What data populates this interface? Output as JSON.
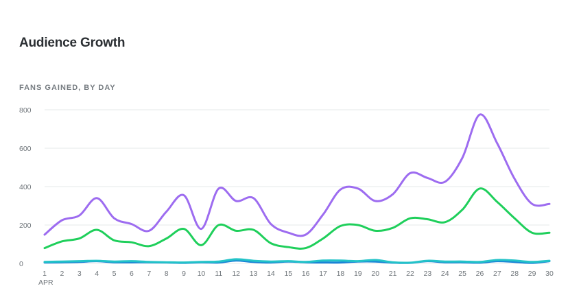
{
  "header": {
    "title": "Audience Growth",
    "subtitle": "FANS GAINED, BY DAY"
  },
  "chart_data": {
    "type": "line",
    "title": "Audience Growth",
    "subtitle": "FANS GAINED, BY DAY",
    "xlabel": "",
    "ylabel": "",
    "x": [
      1,
      2,
      3,
      4,
      5,
      6,
      7,
      8,
      9,
      10,
      11,
      12,
      13,
      14,
      15,
      16,
      17,
      18,
      19,
      20,
      21,
      22,
      23,
      24,
      25,
      26,
      27,
      28,
      29,
      30
    ],
    "x_month_label": "APR",
    "ylim": [
      0,
      800
    ],
    "yticks": [
      0,
      200,
      400,
      600,
      800
    ],
    "grid": true,
    "legend": "none",
    "series": [
      {
        "color": "#9d6cf0",
        "values": [
          150,
          225,
          250,
          340,
          235,
          205,
          170,
          270,
          355,
          180,
          390,
          325,
          340,
          205,
          160,
          150,
          255,
          385,
          390,
          325,
          360,
          470,
          445,
          425,
          550,
          775,
          625,
          440,
          310,
          310
        ]
      },
      {
        "color": "#1fcf5b",
        "values": [
          80,
          115,
          130,
          175,
          120,
          110,
          90,
          130,
          180,
          95,
          200,
          170,
          175,
          105,
          85,
          80,
          130,
          195,
          200,
          170,
          185,
          235,
          230,
          215,
          280,
          390,
          320,
          235,
          160,
          160
        ]
      },
      {
        "color": "#23c3c8",
        "values": [
          8,
          10,
          12,
          14,
          10,
          12,
          8,
          6,
          5,
          8,
          10,
          22,
          14,
          10,
          12,
          8,
          15,
          15,
          12,
          18,
          6,
          4,
          14,
          10,
          10,
          8,
          18,
          15,
          8,
          14
        ]
      },
      {
        "color": "#1a84d6",
        "values": [
          5,
          6,
          8,
          12,
          6,
          6,
          6,
          5,
          3,
          6,
          5,
          15,
          8,
          5,
          10,
          6,
          5,
          5,
          10,
          10,
          4,
          3,
          12,
          6,
          6,
          4,
          12,
          8,
          3,
          12
        ]
      }
    ]
  }
}
